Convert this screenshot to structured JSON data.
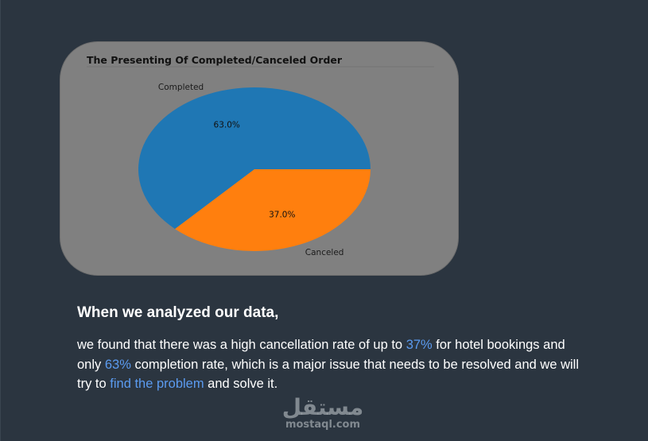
{
  "chart_data": {
    "type": "pie",
    "title": "The Presenting Of Completed/Canceled Order",
    "slices": [
      {
        "label": "Completed",
        "value": 63.0,
        "pct_label": "63.0%",
        "color": "#1f77b4"
      },
      {
        "label": "Canceled",
        "value": 37.0,
        "pct_label": "37.0%",
        "color": "#ff7f0e"
      }
    ],
    "start_angle_deg": 0,
    "direction": "counterclockwise",
    "card_background": "#808080"
  },
  "text": {
    "headline": "When we analyzed our data,",
    "body_1": "we found that there was a high cancellation rate of up to ",
    "hl_1": "37%",
    "body_2": " for hotel bookings and only ",
    "hl_2": "63%",
    "body_3": " completion rate, which is a major issue that needs to be resolved and we will try to ",
    "hl_3": "find the problem",
    "body_4": " and solve it."
  },
  "colors": {
    "page_background": "#2b3540",
    "highlight": "#5b9bf0",
    "text": "#ffffff"
  },
  "watermark": {
    "logo": "مستقل",
    "url": "mostaql.com"
  }
}
